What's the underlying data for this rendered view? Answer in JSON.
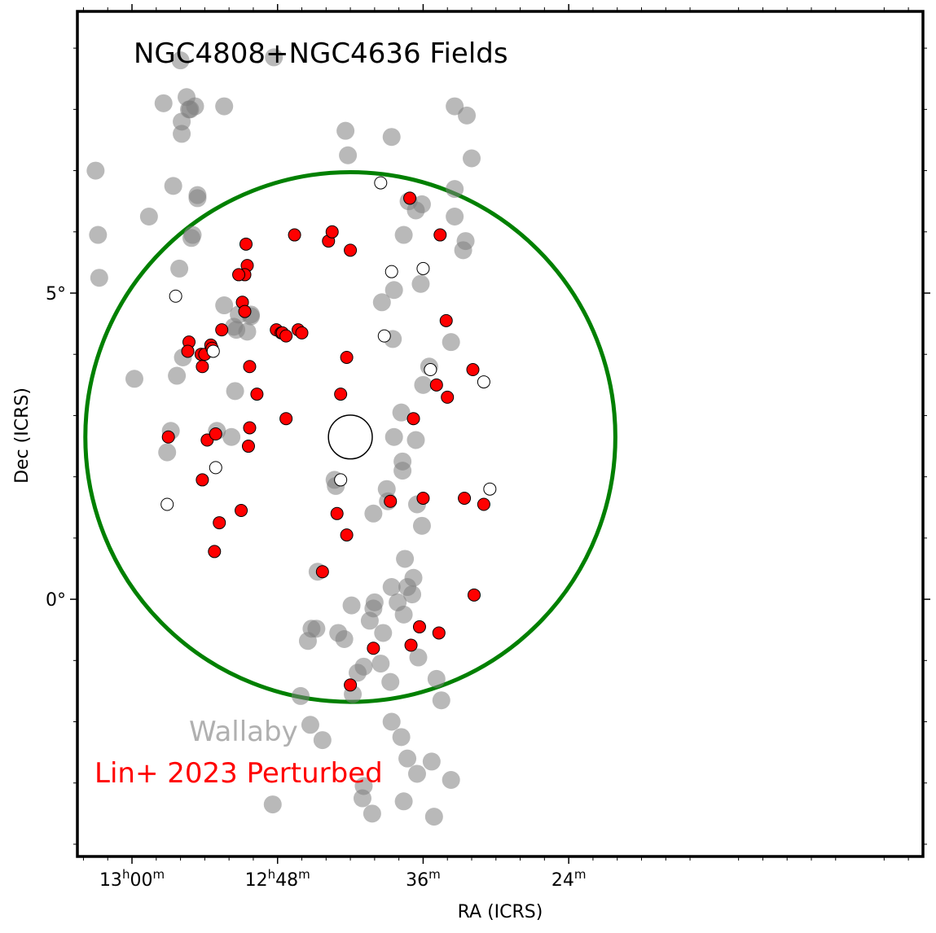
{
  "chart_data": {
    "type": "scatter",
    "title": "NGC4808+NGC4636 Fields",
    "xlabel": "RA (ICRS)",
    "ylabel": "Dec (ICRS)",
    "x_unit": "minutes of RA",
    "xlim": [
      784.5,
      714.8
    ],
    "ylim": [
      -4.2,
      9.6
    ],
    "x_major_ticks": [
      {
        "value": 780,
        "label_h": "13",
        "label_m": "00"
      },
      {
        "value": 768,
        "label_h": "12",
        "label_m": "48"
      },
      {
        "value": 756,
        "label_h": "",
        "label_m": "36"
      },
      {
        "value": 744,
        "label_h": "",
        "label_m": "24"
      }
    ],
    "y_major_ticks": [
      {
        "value": 5,
        "label": "5°"
      },
      {
        "value": 0,
        "label": "0°"
      }
    ],
    "field_circle": {
      "center": [
        762.0,
        2.65
      ],
      "radius_deg": 8.65,
      "color": "#008000"
    },
    "center_marker": {
      "center": [
        762.0,
        2.65
      ],
      "radius_deg": 0.98
    },
    "legend": [
      {
        "label": "Wallaby",
        "color": "#b0b0b0"
      },
      {
        "label": "Lin+ 2023 Perturbed",
        "color": "#ff0000"
      }
    ],
    "series": [
      {
        "name": "Wallaby",
        "color": "#808080",
        "points": [
          [
            783.0,
            7.0
          ],
          [
            782.8,
            5.95
          ],
          [
            782.7,
            5.25
          ],
          [
            775.9,
            7.8
          ],
          [
            775.9,
            7.6
          ],
          [
            776.1,
            5.4
          ],
          [
            775.1,
            5.9
          ],
          [
            775.0,
            5.95
          ],
          [
            774.6,
            6.55
          ],
          [
            775.8,
            3.95
          ],
          [
            779.8,
            3.6
          ],
          [
            778.6,
            6.25
          ],
          [
            777.4,
            8.1
          ],
          [
            776.6,
            6.75
          ],
          [
            776.0,
            8.8
          ],
          [
            775.5,
            8.2
          ],
          [
            775.3,
            8.0
          ],
          [
            775.2,
            8.0
          ],
          [
            774.8,
            8.05
          ],
          [
            774.6,
            6.6
          ],
          [
            772.4,
            8.05
          ],
          [
            768.3,
            8.85
          ],
          [
            762.4,
            7.65
          ],
          [
            762.2,
            7.25
          ],
          [
            758.6,
            7.55
          ],
          [
            753.4,
            8.05
          ],
          [
            752.4,
            7.9
          ],
          [
            752.0,
            7.2
          ],
          [
            753.4,
            6.7
          ],
          [
            753.4,
            6.25
          ],
          [
            752.5,
            5.85
          ],
          [
            752.7,
            5.7
          ],
          [
            757.2,
            6.5
          ],
          [
            756.6,
            6.35
          ],
          [
            756.1,
            6.45
          ],
          [
            757.6,
            5.95
          ],
          [
            756.2,
            5.15
          ],
          [
            758.4,
            5.05
          ],
          [
            759.4,
            4.85
          ],
          [
            758.5,
            4.25
          ],
          [
            753.7,
            4.2
          ],
          [
            755.5,
            3.8
          ],
          [
            756.0,
            3.5
          ],
          [
            757.8,
            3.05
          ],
          [
            758.4,
            2.65
          ],
          [
            757.7,
            2.25
          ],
          [
            757.7,
            2.1
          ],
          [
            756.6,
            2.6
          ],
          [
            759.0,
            1.8
          ],
          [
            760.1,
            1.4
          ],
          [
            758.9,
            1.6
          ],
          [
            756.5,
            1.55
          ],
          [
            756.1,
            1.2
          ],
          [
            756.8,
            0.35
          ],
          [
            756.9,
            0.08
          ],
          [
            757.6,
            -0.25
          ],
          [
            756.4,
            -0.95
          ],
          [
            754.9,
            -1.3
          ],
          [
            754.5,
            -1.65
          ],
          [
            757.3,
            0.2
          ],
          [
            757.5,
            0.66
          ],
          [
            760.4,
            -0.35
          ],
          [
            760.1,
            -0.15
          ],
          [
            760.0,
            -0.05
          ],
          [
            758.1,
            -0.05
          ],
          [
            758.6,
            0.2
          ],
          [
            759.3,
            -0.55
          ],
          [
            759.5,
            -1.05
          ],
          [
            758.7,
            -1.35
          ],
          [
            758.6,
            -2.0
          ],
          [
            757.8,
            -2.25
          ],
          [
            757.3,
            -2.6
          ],
          [
            756.5,
            -2.85
          ],
          [
            755.3,
            -2.65
          ],
          [
            753.7,
            -2.95
          ],
          [
            755.1,
            -3.55
          ],
          [
            757.6,
            -3.3
          ],
          [
            760.2,
            -3.5
          ],
          [
            760.9,
            -3.05
          ],
          [
            761.0,
            -3.25
          ],
          [
            761.8,
            -1.55
          ],
          [
            760.9,
            -1.1
          ],
          [
            761.9,
            -0.1
          ],
          [
            761.4,
            -1.2
          ],
          [
            762.5,
            -0.65
          ],
          [
            763.0,
            -0.55
          ],
          [
            764.8,
            -0.48
          ],
          [
            765.2,
            -0.48
          ],
          [
            765.5,
            -0.68
          ],
          [
            766.1,
            -1.58
          ],
          [
            764.3,
            -2.3
          ],
          [
            765.3,
            -2.05
          ],
          [
            768.4,
            -3.35
          ],
          [
            770.2,
            4.62
          ],
          [
            770.5,
            4.37
          ],
          [
            771.4,
            4.4
          ],
          [
            771.6,
            4.45
          ],
          [
            771.5,
            3.4
          ],
          [
            770.2,
            4.65
          ],
          [
            773.0,
            2.75
          ],
          [
            771.8,
            2.65
          ],
          [
            772.4,
            4.8
          ],
          [
            771.2,
            4.65
          ],
          [
            776.8,
            2.75
          ],
          [
            777.1,
            2.4
          ],
          [
            776.3,
            3.65
          ],
          [
            764.7,
            0.45
          ],
          [
            763.3,
            1.95
          ],
          [
            763.2,
            1.85
          ]
        ]
      },
      {
        "name": "Lin+ 2023 Perturbed",
        "color": "#ff0000",
        "points": [
          [
            763.8,
            5.85
          ],
          [
            763.5,
            6.0
          ],
          [
            762.0,
            5.7
          ],
          [
            766.6,
            5.95
          ],
          [
            770.6,
            5.8
          ],
          [
            770.5,
            5.45
          ],
          [
            770.7,
            5.3
          ],
          [
            771.2,
            5.3
          ],
          [
            770.9,
            4.85
          ],
          [
            770.7,
            4.7
          ],
          [
            768.1,
            4.4
          ],
          [
            767.7,
            4.35
          ],
          [
            767.6,
            4.35
          ],
          [
            767.3,
            4.3
          ],
          [
            766.3,
            4.4
          ],
          [
            766.0,
            4.35
          ],
          [
            775.3,
            4.2
          ],
          [
            774.3,
            4.0
          ],
          [
            774.0,
            4.0
          ],
          [
            774.2,
            3.8
          ],
          [
            775.4,
            4.05
          ],
          [
            772.6,
            4.4
          ],
          [
            773.5,
            4.15
          ],
          [
            773.4,
            4.1
          ],
          [
            770.3,
            3.8
          ],
          [
            769.7,
            3.35
          ],
          [
            767.3,
            2.95
          ],
          [
            770.3,
            2.8
          ],
          [
            770.4,
            2.5
          ],
          [
            771.0,
            1.45
          ],
          [
            762.8,
            3.35
          ],
          [
            762.3,
            3.95
          ],
          [
            757.1,
            6.55
          ],
          [
            754.6,
            5.95
          ],
          [
            754.1,
            4.55
          ],
          [
            754.0,
            3.3
          ],
          [
            754.9,
            3.5
          ],
          [
            756.8,
            2.95
          ],
          [
            758.7,
            1.6
          ],
          [
            756.0,
            1.65
          ],
          [
            752.6,
            1.65
          ],
          [
            751.9,
            3.75
          ],
          [
            751.0,
            1.55
          ],
          [
            751.8,
            0.07
          ],
          [
            754.7,
            -0.55
          ],
          [
            756.3,
            -0.45
          ],
          [
            757.0,
            -0.75
          ],
          [
            760.1,
            -0.8
          ],
          [
            762.0,
            -1.4
          ],
          [
            762.3,
            1.05
          ],
          [
            763.1,
            1.4
          ],
          [
            764.3,
            0.45
          ],
          [
            773.8,
            2.6
          ],
          [
            773.1,
            2.7
          ],
          [
            777.0,
            2.65
          ],
          [
            774.2,
            1.95
          ],
          [
            773.2,
            0.78
          ],
          [
            772.8,
            1.25
          ]
        ]
      },
      {
        "name": "Open",
        "color": "#ffffff",
        "points": [
          [
            759.5,
            6.8
          ],
          [
            758.6,
            5.35
          ],
          [
            756.0,
            5.4
          ],
          [
            776.4,
            4.95
          ],
          [
            773.3,
            4.05
          ],
          [
            759.2,
            4.3
          ],
          [
            755.4,
            3.75
          ],
          [
            751.0,
            3.55
          ],
          [
            750.5,
            1.8
          ],
          [
            762.8,
            1.95
          ],
          [
            777.1,
            1.55
          ],
          [
            773.1,
            2.15
          ]
        ]
      }
    ]
  }
}
